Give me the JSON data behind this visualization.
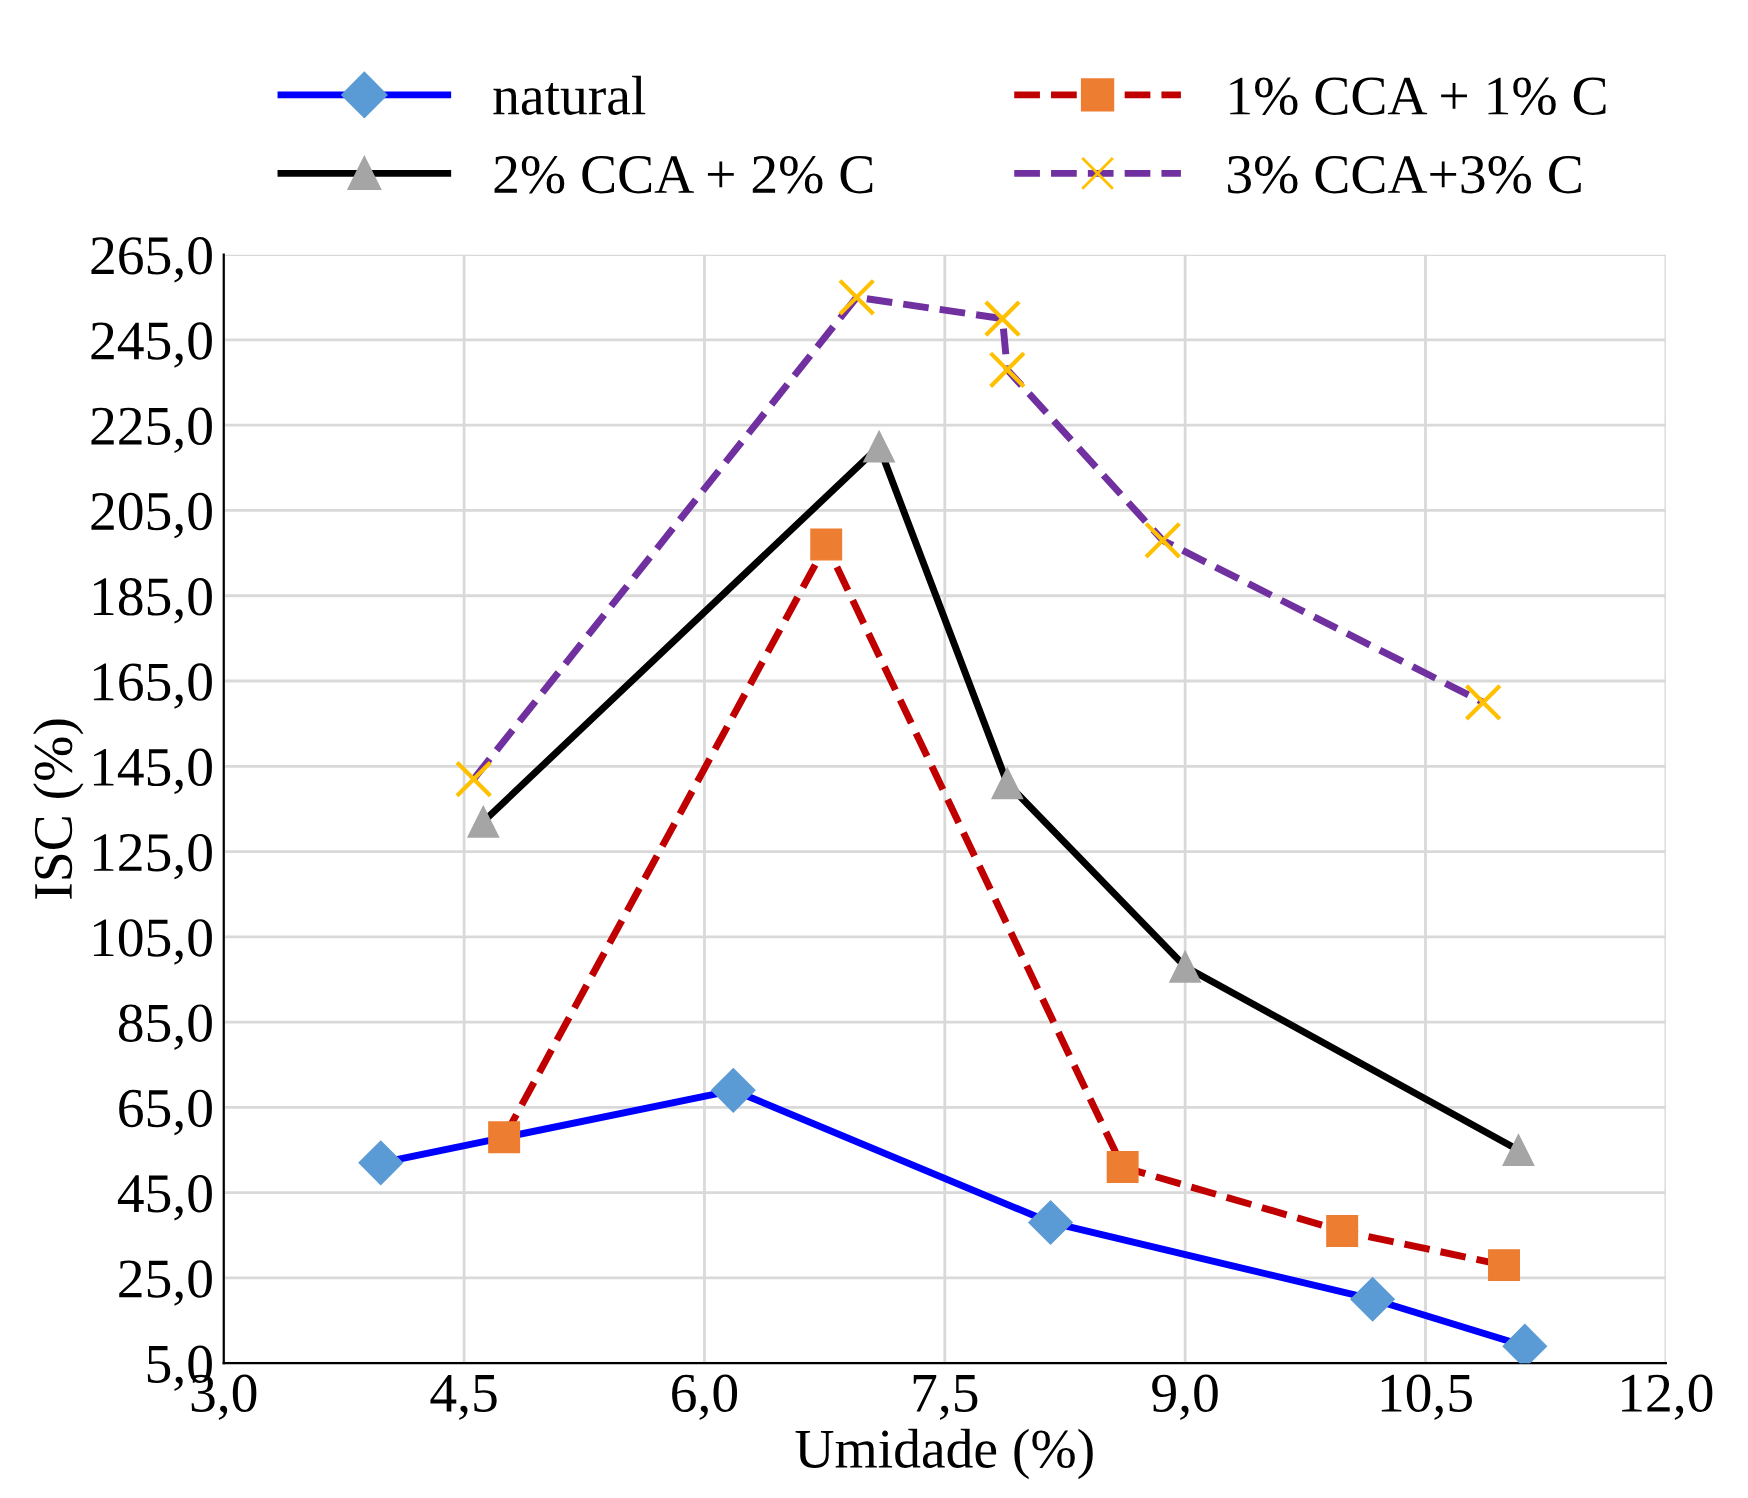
{
  "chart_data": {
    "type": "line",
    "xlabel": "Umidade (%)",
    "ylabel": "ISC (%)",
    "xlim": [
      3.0,
      12.0
    ],
    "xticks": [
      {
        "value": 3.0,
        "label": "3,0"
      },
      {
        "value": 4.5,
        "label": "4,5"
      },
      {
        "value": 6.0,
        "label": "6,0"
      },
      {
        "value": 7.5,
        "label": "7,5"
      },
      {
        "value": 9.0,
        "label": "9,0"
      },
      {
        "value": 10.5,
        "label": "10,5"
      },
      {
        "value": 12.0,
        "label": "12,0"
      }
    ],
    "ylim": [
      5.0,
      265.0
    ],
    "yticks": [
      {
        "value": 5,
        "label": "5,0"
      },
      {
        "value": 25,
        "label": "25,0"
      },
      {
        "value": 45,
        "label": "45,0"
      },
      {
        "value": 65,
        "label": "65,0"
      },
      {
        "value": 85,
        "label": "85,0"
      },
      {
        "value": 105,
        "label": "105,0"
      },
      {
        "value": 125,
        "label": "125,0"
      },
      {
        "value": 145,
        "label": "145,0"
      },
      {
        "value": 165,
        "label": "165,0"
      },
      {
        "value": 185,
        "label": "185,0"
      },
      {
        "value": 205,
        "label": "205,0"
      },
      {
        "value": 225,
        "label": "225,0"
      },
      {
        "value": 245,
        "label": "245,0"
      },
      {
        "value": 265,
        "label": "265,0"
      }
    ],
    "grid": true,
    "legend": "top",
    "series": [
      {
        "name": "natural",
        "color": "#0000ff",
        "line_style": "solid",
        "marker": "diamond",
        "colors": [
          "#5b9bd5",
          "#5b9bd5",
          "#5b9bd5",
          "#5b9bd5",
          "#5b9bd5"
        ],
        "x": [
          3.98,
          6.18,
          8.16,
          10.17,
          11.12
        ],
        "values": [
          52,
          69,
          38,
          20,
          9
        ]
      },
      {
        "name": "1% CCA + 1% C",
        "color": "#c00000",
        "line_style": "dashed",
        "marker": "square",
        "colors": [
          "#ed7d31",
          "#ed7d31",
          "#ed7d31",
          "#ed7d31",
          "#ed7d31"
        ],
        "x": [
          4.75,
          6.76,
          8.61,
          9.98,
          10.99
        ],
        "values": [
          58,
          197,
          51,
          36,
          28
        ]
      },
      {
        "name": "2% CCA + 2% C",
        "color": "#000000",
        "line_style": "solid",
        "marker": "triangle",
        "colors": [
          "#a5a5a5",
          "#a5a5a5",
          "#a5a5a5",
          "#a5a5a5",
          "#a5a5a5"
        ],
        "x": [
          4.62,
          7.09,
          7.89,
          9.0,
          11.08
        ],
        "values": [
          132,
          220,
          141,
          98,
          55
        ]
      },
      {
        "name": "3% CCA+3% C",
        "color": "#7030a0",
        "line_style": "dashed",
        "marker": "cross",
        "colors": [
          "#ffc000",
          "#ffc000",
          "#ffc000",
          "#ffc000",
          "#ffc000",
          "#ffc000"
        ],
        "x": [
          4.56,
          6.95,
          7.86,
          7.89,
          8.86,
          10.86
        ],
        "values": [
          142,
          255,
          250,
          238,
          198,
          160
        ]
      }
    ]
  }
}
